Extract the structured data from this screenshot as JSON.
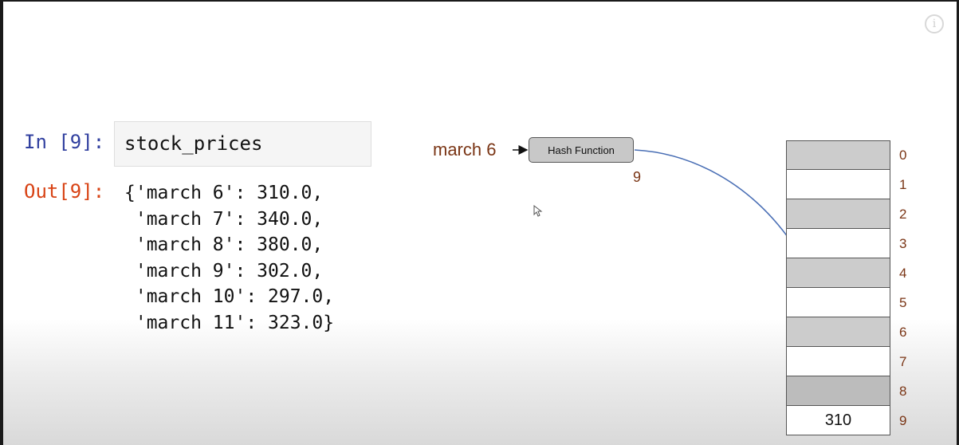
{
  "notebook": {
    "input_prompt": "In [9]:",
    "input_code": "stock_prices",
    "output_prompt": "Out[9]:",
    "output_lines": [
      "{'march 6': 310.0,",
      " 'march 7': 340.0,",
      " 'march 8': 380.0,",
      " 'march 9': 302.0,",
      " 'march 10': 297.0,",
      " 'march 11': 323.0}"
    ]
  },
  "diagram": {
    "key_label": "march 6",
    "hash_box_label": "Hash Function",
    "hash_result": "9",
    "buckets": [
      {
        "index": "0",
        "value": "",
        "shade": "shaded"
      },
      {
        "index": "1",
        "value": "",
        "shade": ""
      },
      {
        "index": "2",
        "value": "",
        "shade": "shaded"
      },
      {
        "index": "3",
        "value": "",
        "shade": ""
      },
      {
        "index": "4",
        "value": "",
        "shade": "shaded"
      },
      {
        "index": "5",
        "value": "",
        "shade": ""
      },
      {
        "index": "6",
        "value": "",
        "shade": "shaded"
      },
      {
        "index": "7",
        "value": "",
        "shade": ""
      },
      {
        "index": "8",
        "value": "",
        "shade": "dark"
      },
      {
        "index": "9",
        "value": "310",
        "shade": ""
      }
    ],
    "colors": {
      "arrow": "#4a6fb5",
      "label": "#7a3515",
      "in_prompt": "#303f9f",
      "out_prompt": "#d84315"
    }
  },
  "player": {
    "info_icon": "info-icon"
  }
}
